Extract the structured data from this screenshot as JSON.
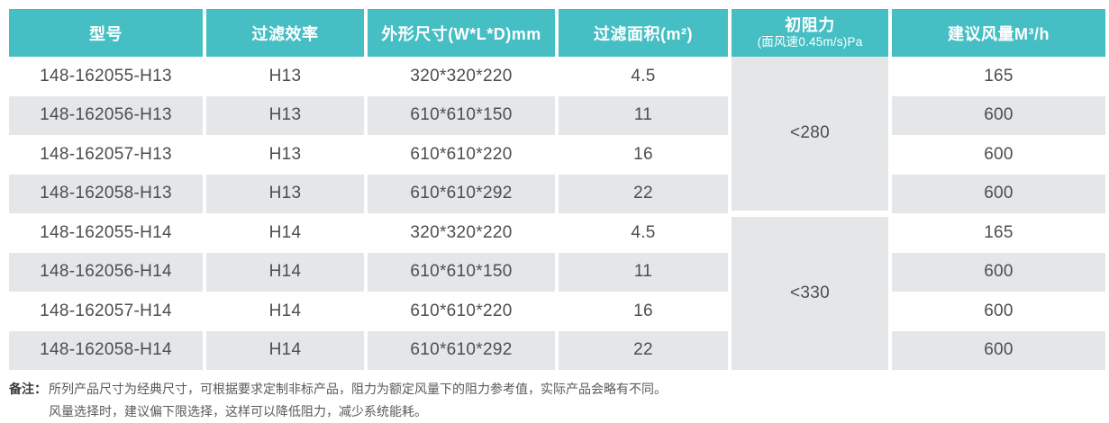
{
  "theme": {
    "header_bg": "#45BEC4",
    "header_text": "#FFFFFF",
    "stripe_bg": "#E5E6E8",
    "body_text": "#4B4D50",
    "note_text": "#5A5A5C"
  },
  "table": {
    "header": {
      "model": "型号",
      "efficiency": "过滤效率",
      "dimensions": "外形尺寸(W*L*D)mm",
      "area": "过滤面积(m²)",
      "resistance_line1": "初阻力",
      "resistance_line2": "(面风速0.45m/s)Pa",
      "airflow": "建议风量M³/h"
    },
    "rows": [
      {
        "model": "148-162055-H13",
        "efficiency": "H13",
        "dimensions": "320*320*220",
        "area": "4.5",
        "airflow": "165"
      },
      {
        "model": "148-162056-H13",
        "efficiency": "H13",
        "dimensions": "610*610*150",
        "area": "11",
        "airflow": "600"
      },
      {
        "model": "148-162057-H13",
        "efficiency": "H13",
        "dimensions": "610*610*220",
        "area": "16",
        "airflow": "600"
      },
      {
        "model": "148-162058-H13",
        "efficiency": "H13",
        "dimensions": "610*610*292",
        "area": "22",
        "airflow": "600"
      },
      {
        "model": "148-162055-H14",
        "efficiency": "H14",
        "dimensions": "320*320*220",
        "area": "4.5",
        "airflow": "165"
      },
      {
        "model": "148-162056-H14",
        "efficiency": "H14",
        "dimensions": "610*610*150",
        "area": "11",
        "airflow": "600"
      },
      {
        "model": "148-162057-H14",
        "efficiency": "H14",
        "dimensions": "610*610*220",
        "area": "16",
        "airflow": "600"
      },
      {
        "model": "148-162058-H14",
        "efficiency": "H14",
        "dimensions": "610*610*292",
        "area": "22",
        "airflow": "600"
      }
    ],
    "merged_resistance": [
      {
        "value": "<280"
      },
      {
        "value": "<330"
      }
    ]
  },
  "notes": {
    "label": "备注：",
    "line1": "所列产品尺寸为经典尺寸，可根据要求定制非标产品，阻力为额定风量下的阻力参考值，实际产品会略有不同。",
    "line2": "风量选择时，建议偏下限选择，这样可以降低阻力，减少系统能耗。"
  }
}
